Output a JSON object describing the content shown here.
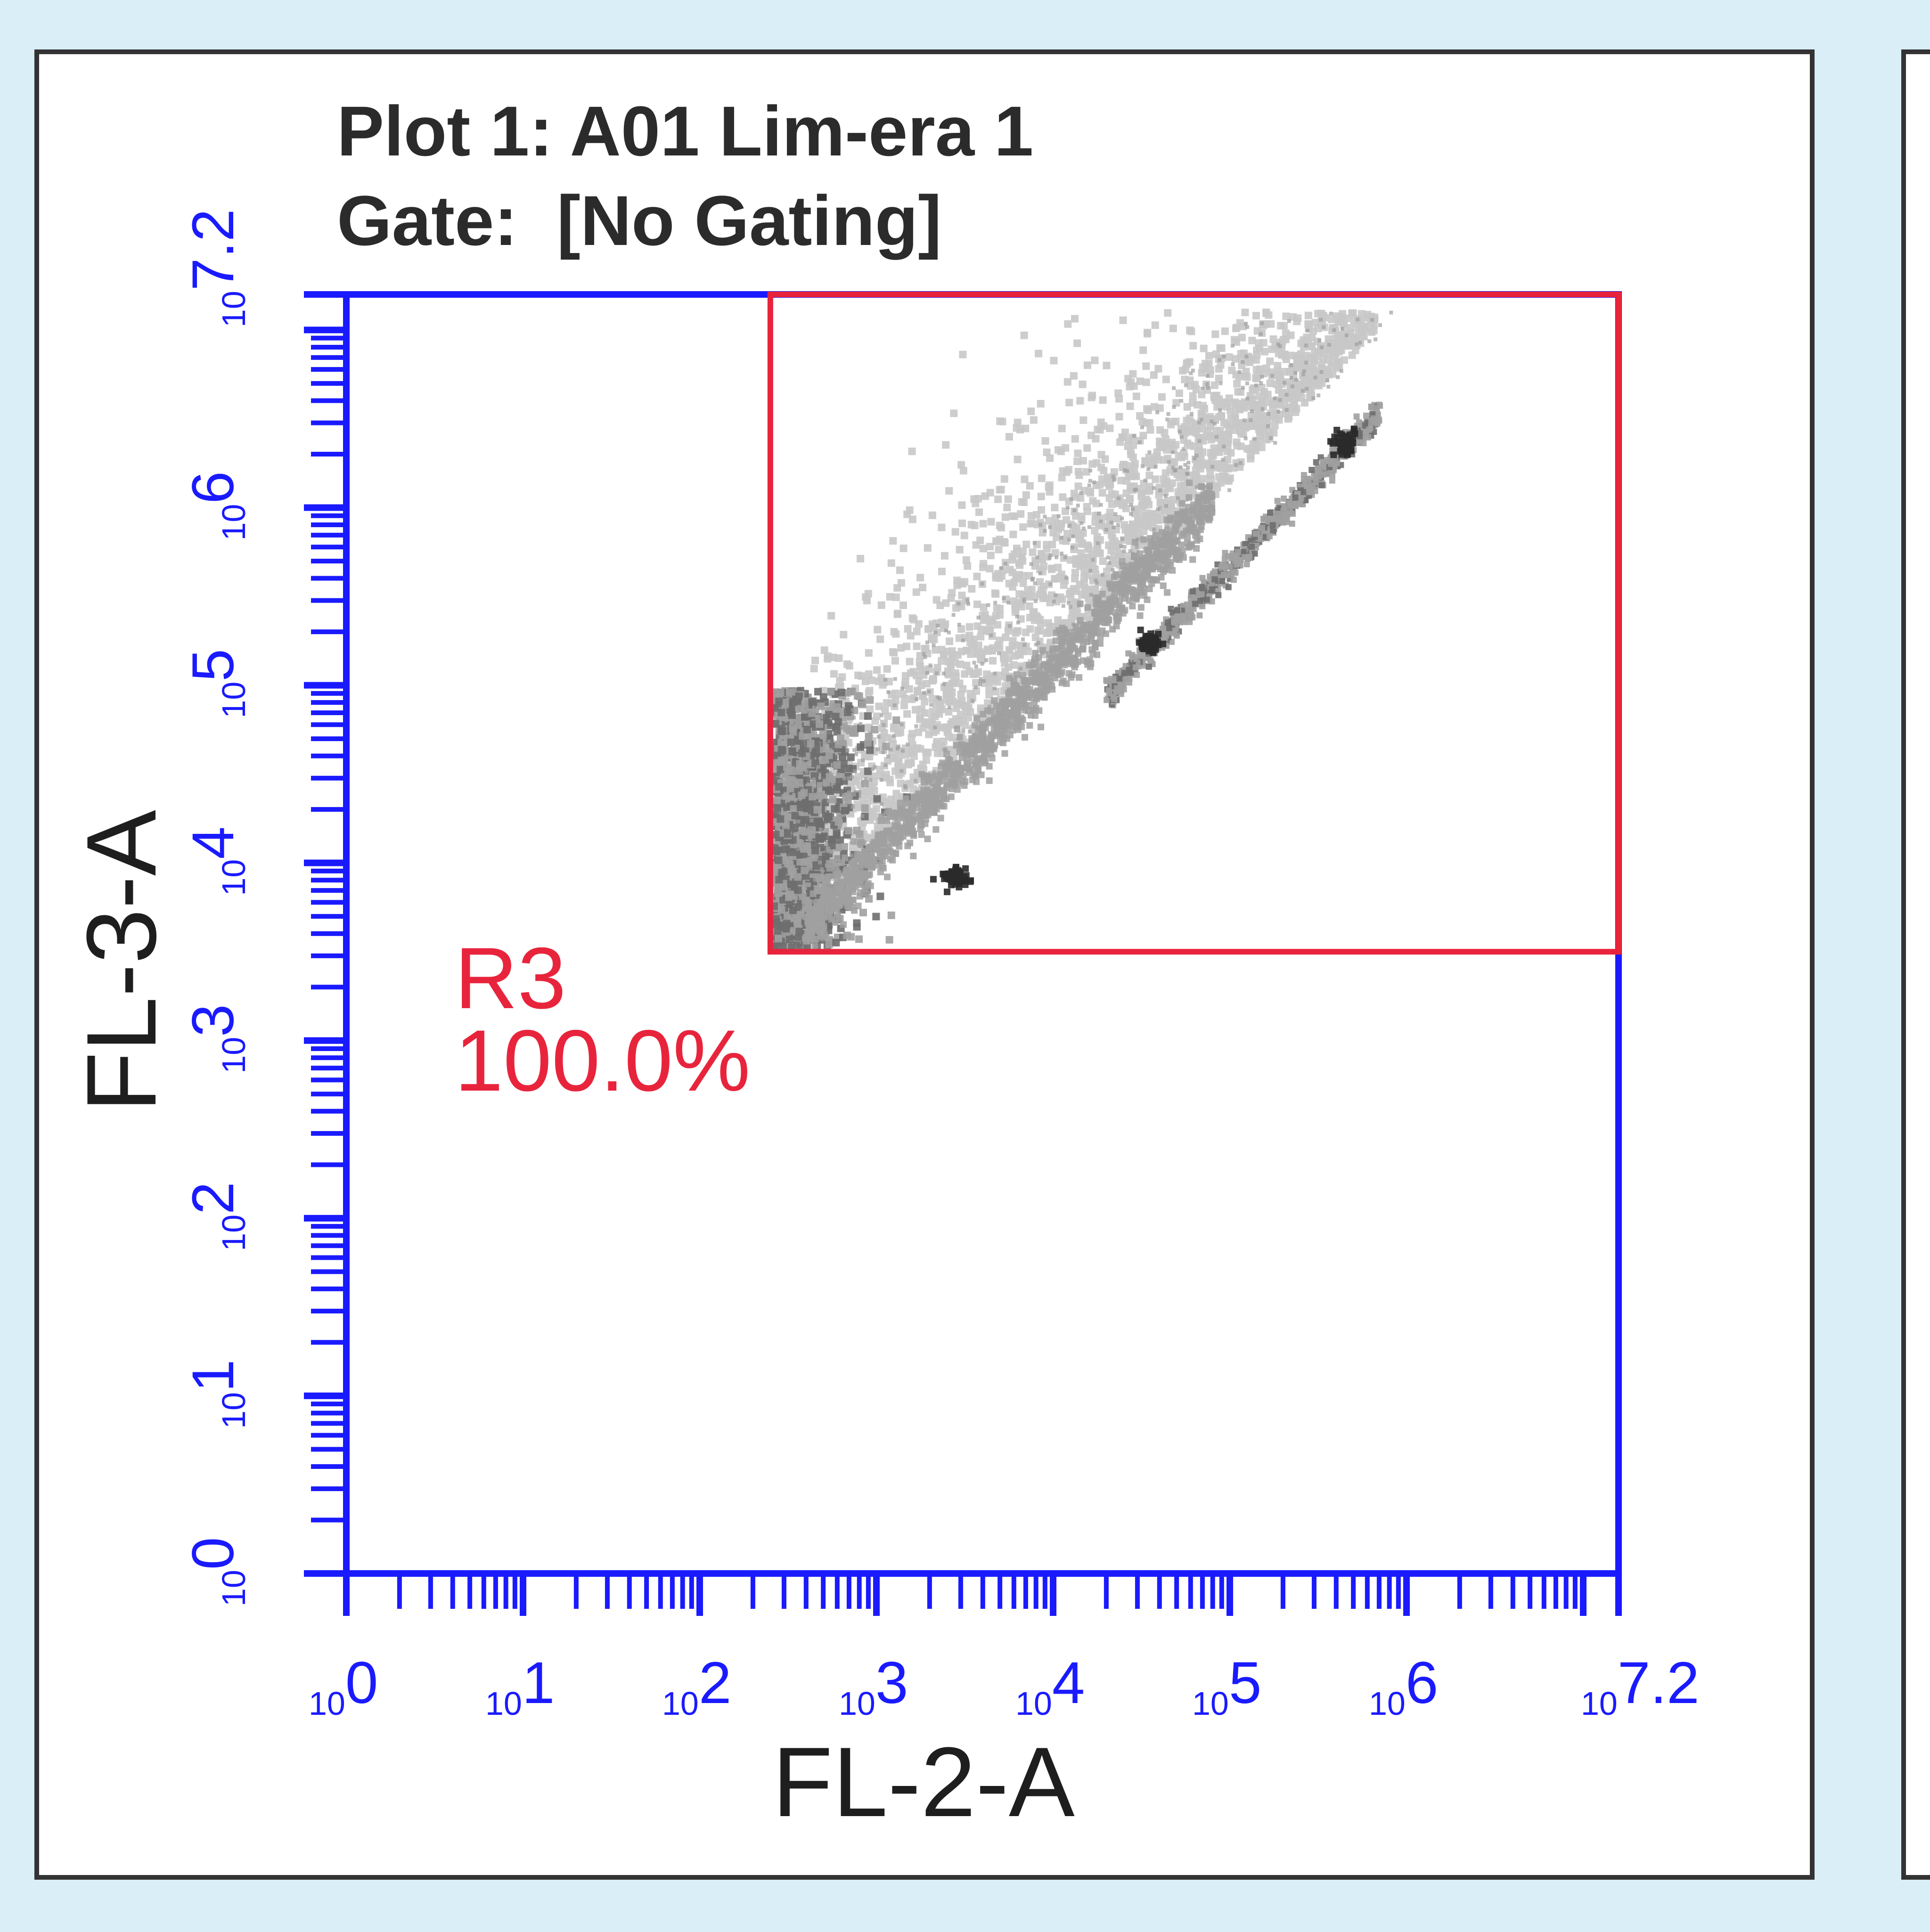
{
  "chart_data": {
    "type": "scatter",
    "title": "Plot 1: A01 Lim-era 1",
    "subtitle": "Gate:  [No Gating]",
    "xlabel": "FL-2-A",
    "ylabel": "FL-3-A",
    "x_scale": "log",
    "y_scale": "log",
    "xlim": [
      1,
      15848932
    ],
    "ylim": [
      1,
      15848932
    ],
    "x_ticks": [
      {
        "base": "10",
        "exp": "0"
      },
      {
        "base": "10",
        "exp": "1"
      },
      {
        "base": "10",
        "exp": "2"
      },
      {
        "base": "10",
        "exp": "3"
      },
      {
        "base": "10",
        "exp": "4"
      },
      {
        "base": "10",
        "exp": "5"
      },
      {
        "base": "10",
        "exp": "6"
      },
      {
        "base": "10",
        "exp": "7.2"
      }
    ],
    "y_ticks": [
      {
        "base": "10",
        "exp": "0"
      },
      {
        "base": "10",
        "exp": "1"
      },
      {
        "base": "10",
        "exp": "2"
      },
      {
        "base": "10",
        "exp": "3"
      },
      {
        "base": "10",
        "exp": "4"
      },
      {
        "base": "10",
        "exp": "5"
      },
      {
        "base": "10",
        "exp": "6"
      },
      {
        "base": "10",
        "exp": "7.2"
      }
    ],
    "gate": {
      "name": "R3",
      "percent": "100.0%",
      "x_min": 251,
      "x_max": 15848932,
      "y_min": 3162,
      "y_max": 15848932
    },
    "grid": false,
    "legend": "none",
    "colors": {
      "axis": "#1a1aff",
      "gate": "#e8243c",
      "title": "#2b2b2b",
      "panel_border": "#333333",
      "background": "#d9eef6",
      "density_light": "#c8c8c8",
      "density_mid": "#a0a0a0",
      "density_dark": "#6e6e6e",
      "density_peak": "#2a2a2a"
    }
  }
}
